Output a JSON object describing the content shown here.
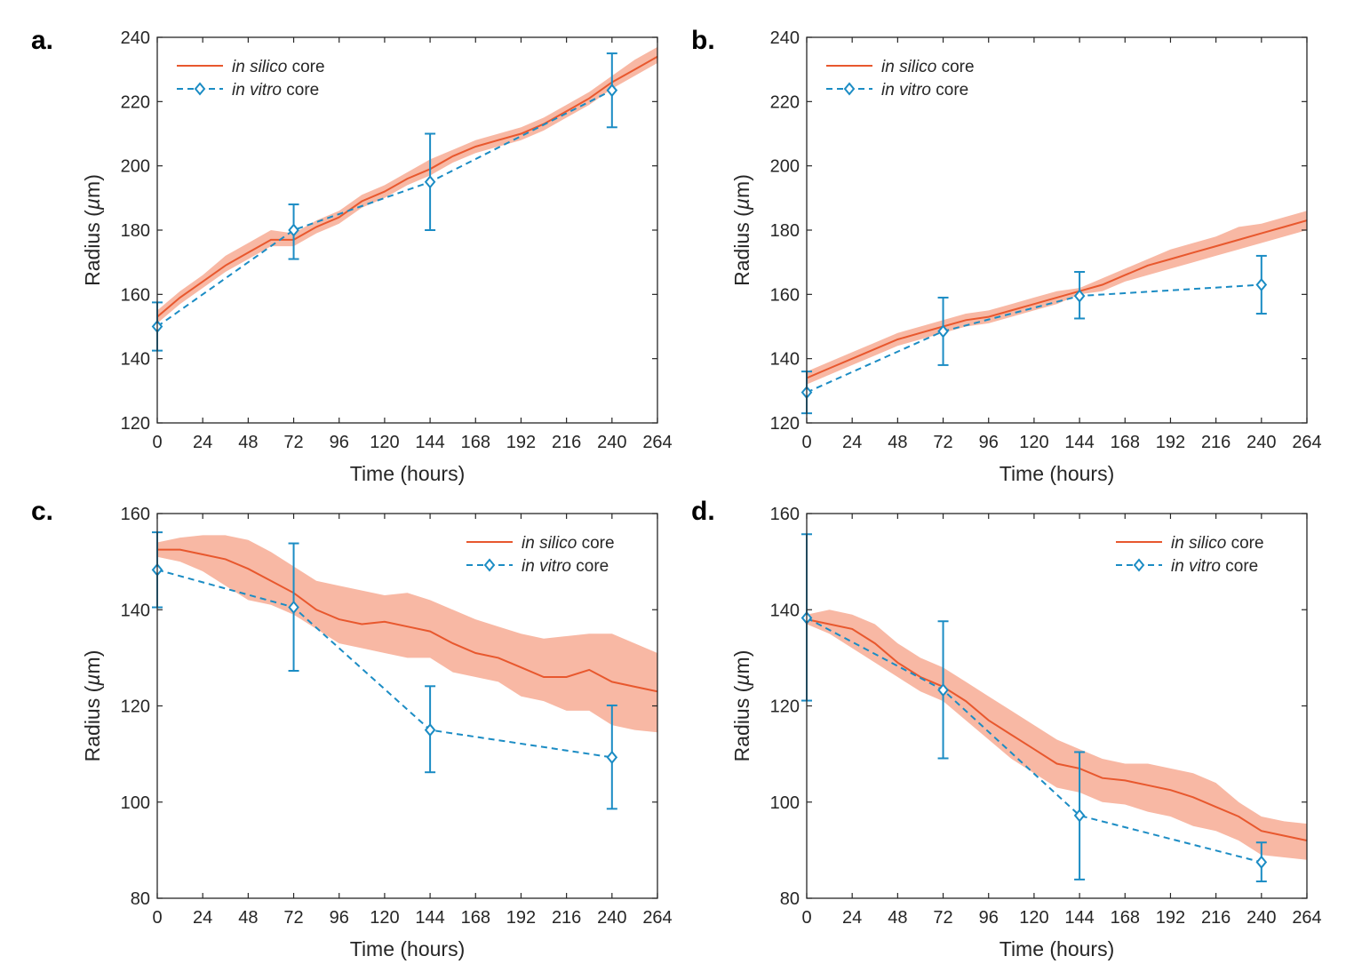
{
  "figure": {
    "colors": {
      "silico": "#e8582e",
      "silico_band": "#f8b8a4",
      "vitro": "#1b8cc4",
      "axis": "#262626"
    }
  },
  "chart_data": [
    {
      "type": "line",
      "panel_label": "a.",
      "xlabel": "Time (hours)",
      "ylabel_prefix": "Radius (",
      "ylabel_unit": "µ",
      "ylabel_suffix": "m)",
      "xlim": [
        0,
        264
      ],
      "ylim": [
        120,
        240
      ],
      "xticks": [
        0,
        24,
        48,
        72,
        96,
        120,
        144,
        168,
        192,
        216,
        240,
        264
      ],
      "yticks": [
        120,
        140,
        160,
        180,
        200,
        220,
        240
      ],
      "legend": {
        "position": "top-left",
        "entries": [
          {
            "italic": "in silico",
            "rest": " core"
          },
          {
            "italic": "in vitro",
            "rest": " core"
          }
        ]
      },
      "series": [
        {
          "name": "in silico core",
          "style": "solid",
          "x": [
            0,
            12,
            24,
            36,
            48,
            60,
            72,
            84,
            96,
            108,
            120,
            132,
            144,
            156,
            168,
            180,
            192,
            204,
            216,
            228,
            240,
            252,
            264
          ],
          "y": [
            153,
            159,
            164,
            169,
            173,
            177,
            177,
            181,
            184,
            189,
            192,
            196,
            199,
            203,
            206,
            208,
            210,
            213,
            217,
            221,
            226,
            230,
            234
          ],
          "lower": [
            151,
            157,
            162,
            167,
            171,
            175,
            175,
            179,
            182,
            187,
            190,
            194,
            197,
            201,
            204,
            206,
            208,
            211,
            215,
            219,
            224,
            228,
            232
          ],
          "upper": [
            155,
            161,
            166,
            172,
            176,
            180,
            179,
            183,
            186,
            191,
            194,
            198,
            202,
            205,
            208,
            210,
            212,
            215,
            219,
            223,
            228,
            233,
            237
          ]
        },
        {
          "name": "in vitro core",
          "style": "dashed",
          "marker": "diamond",
          "x": [
            0,
            72,
            144,
            240
          ],
          "y": [
            150,
            180,
            195,
            223.5
          ],
          "err_low": [
            142.5,
            171,
            180,
            212
          ],
          "err_high": [
            157.5,
            188,
            210,
            235
          ]
        }
      ]
    },
    {
      "type": "line",
      "panel_label": "b.",
      "xlabel": "Time (hours)",
      "ylabel_prefix": "Radius (",
      "ylabel_unit": "µ",
      "ylabel_suffix": "m)",
      "xlim": [
        0,
        264
      ],
      "ylim": [
        120,
        240
      ],
      "xticks": [
        0,
        24,
        48,
        72,
        96,
        120,
        144,
        168,
        192,
        216,
        240,
        264
      ],
      "yticks": [
        120,
        140,
        160,
        180,
        200,
        220,
        240
      ],
      "legend": {
        "position": "top-left",
        "entries": [
          {
            "italic": "in silico",
            "rest": " core"
          },
          {
            "italic": "in vitro",
            "rest": " core"
          }
        ]
      },
      "series": [
        {
          "name": "in silico core",
          "style": "solid",
          "x": [
            0,
            12,
            24,
            36,
            48,
            60,
            72,
            84,
            96,
            108,
            120,
            132,
            144,
            156,
            168,
            180,
            192,
            204,
            216,
            228,
            240,
            252,
            264
          ],
          "y": [
            134,
            137,
            140,
            143,
            146,
            148,
            150,
            152,
            153,
            155,
            157,
            159,
            161,
            163,
            166,
            169,
            171,
            173,
            175,
            177,
            179,
            181,
            183
          ],
          "lower": [
            132,
            135,
            138,
            141,
            144,
            146,
            148,
            150,
            151,
            153,
            155,
            157,
            160,
            161,
            164,
            166,
            168,
            170,
            172,
            174,
            176,
            178,
            180
          ],
          "upper": [
            136,
            139,
            142,
            145,
            148,
            150,
            152,
            154,
            155,
            157,
            159,
            161,
            162,
            165,
            168,
            171,
            174,
            176,
            178,
            181,
            182,
            184,
            186
          ]
        },
        {
          "name": "in vitro core",
          "style": "dashed",
          "marker": "diamond",
          "x": [
            0,
            72,
            144,
            240
          ],
          "y": [
            129.5,
            148.5,
            159.5,
            163
          ],
          "err_low": [
            123,
            138,
            152.5,
            154
          ],
          "err_high": [
            136,
            159,
            167,
            172
          ]
        }
      ]
    },
    {
      "type": "line",
      "panel_label": "c.",
      "xlabel": "Time (hours)",
      "ylabel_prefix": "Radius (",
      "ylabel_unit": "µ",
      "ylabel_suffix": "m)",
      "xlim": [
        0,
        264
      ],
      "ylim": [
        80,
        160
      ],
      "xticks": [
        0,
        24,
        48,
        72,
        96,
        120,
        144,
        168,
        192,
        216,
        240,
        264
      ],
      "yticks": [
        80,
        100,
        120,
        140,
        160
      ],
      "legend": {
        "position": "top-right",
        "entries": [
          {
            "italic": "in silico",
            "rest": " core"
          },
          {
            "italic": "in vitro",
            "rest": " core"
          }
        ]
      },
      "series": [
        {
          "name": "in silico core",
          "style": "solid",
          "x": [
            0,
            12,
            24,
            36,
            48,
            60,
            72,
            84,
            96,
            108,
            120,
            132,
            144,
            156,
            168,
            180,
            192,
            204,
            216,
            228,
            240,
            252,
            264
          ],
          "y": [
            152.5,
            152.5,
            151.5,
            150.5,
            148.5,
            146,
            143.5,
            140,
            138,
            137,
            137.5,
            136.5,
            135.5,
            133,
            131,
            130,
            128,
            126,
            126,
            127.5,
            125,
            124,
            123
          ],
          "lower": [
            151,
            150,
            148,
            145,
            142,
            141,
            139,
            136,
            133,
            132,
            131,
            130,
            130,
            127,
            126,
            125,
            122,
            121,
            119,
            119,
            116,
            115,
            114.5
          ],
          "upper": [
            154,
            155,
            155.5,
            155.5,
            154.5,
            152,
            149,
            146,
            145,
            144,
            143,
            143.5,
            142,
            140,
            138,
            136.5,
            135,
            134,
            134.5,
            135,
            135,
            133,
            131
          ]
        },
        {
          "name": "in vitro core",
          "style": "dashed",
          "marker": "diamond",
          "x": [
            0,
            72,
            144,
            240
          ],
          "y": [
            148.3,
            140.5,
            115,
            109.3
          ],
          "err_low": [
            140.5,
            127.3,
            106.2,
            98.6
          ],
          "err_high": [
            156.1,
            153.8,
            124.1,
            120.1
          ]
        }
      ]
    },
    {
      "type": "line",
      "panel_label": "d.",
      "xlabel": "Time (hours)",
      "ylabel_prefix": "Radius (",
      "ylabel_unit": "µ",
      "ylabel_suffix": "m)",
      "xlim": [
        0,
        264
      ],
      "ylim": [
        80,
        160
      ],
      "xticks": [
        0,
        24,
        48,
        72,
        96,
        120,
        144,
        168,
        192,
        216,
        240,
        264
      ],
      "yticks": [
        80,
        100,
        120,
        140,
        160
      ],
      "legend": {
        "position": "top-right",
        "entries": [
          {
            "italic": "in silico",
            "rest": " core"
          },
          {
            "italic": "in vitro",
            "rest": " core"
          }
        ]
      },
      "series": [
        {
          "name": "in silico core",
          "style": "solid",
          "x": [
            0,
            12,
            24,
            36,
            48,
            60,
            72,
            84,
            96,
            108,
            120,
            132,
            144,
            156,
            168,
            180,
            192,
            204,
            216,
            228,
            240,
            252,
            264
          ],
          "y": [
            138,
            137,
            136,
            133,
            129,
            126,
            124,
            121,
            117,
            114,
            111,
            108,
            107,
            105,
            104.5,
            103.5,
            102.5,
            101,
            99,
            97,
            94,
            93,
            92
          ],
          "lower": [
            137,
            135,
            132,
            129,
            126,
            123,
            121,
            117,
            113,
            109,
            106,
            103,
            102,
            100,
            99.5,
            98,
            97,
            95,
            94,
            92,
            89,
            88.5,
            88
          ],
          "upper": [
            139,
            140,
            139,
            137,
            133,
            130,
            128,
            125,
            122,
            119,
            116,
            113,
            111,
            109,
            108,
            108,
            107,
            106,
            104,
            100,
            97,
            96,
            95.5
          ]
        },
        {
          "name": "in vitro core",
          "style": "dashed",
          "marker": "diamond",
          "x": [
            0,
            72,
            144,
            240
          ],
          "y": [
            138.3,
            123.3,
            97.2,
            87.5
          ],
          "err_low": [
            121.1,
            109.1,
            83.9,
            83.5
          ],
          "err_high": [
            155.7,
            137.6,
            110.4,
            91.6
          ]
        }
      ]
    }
  ]
}
